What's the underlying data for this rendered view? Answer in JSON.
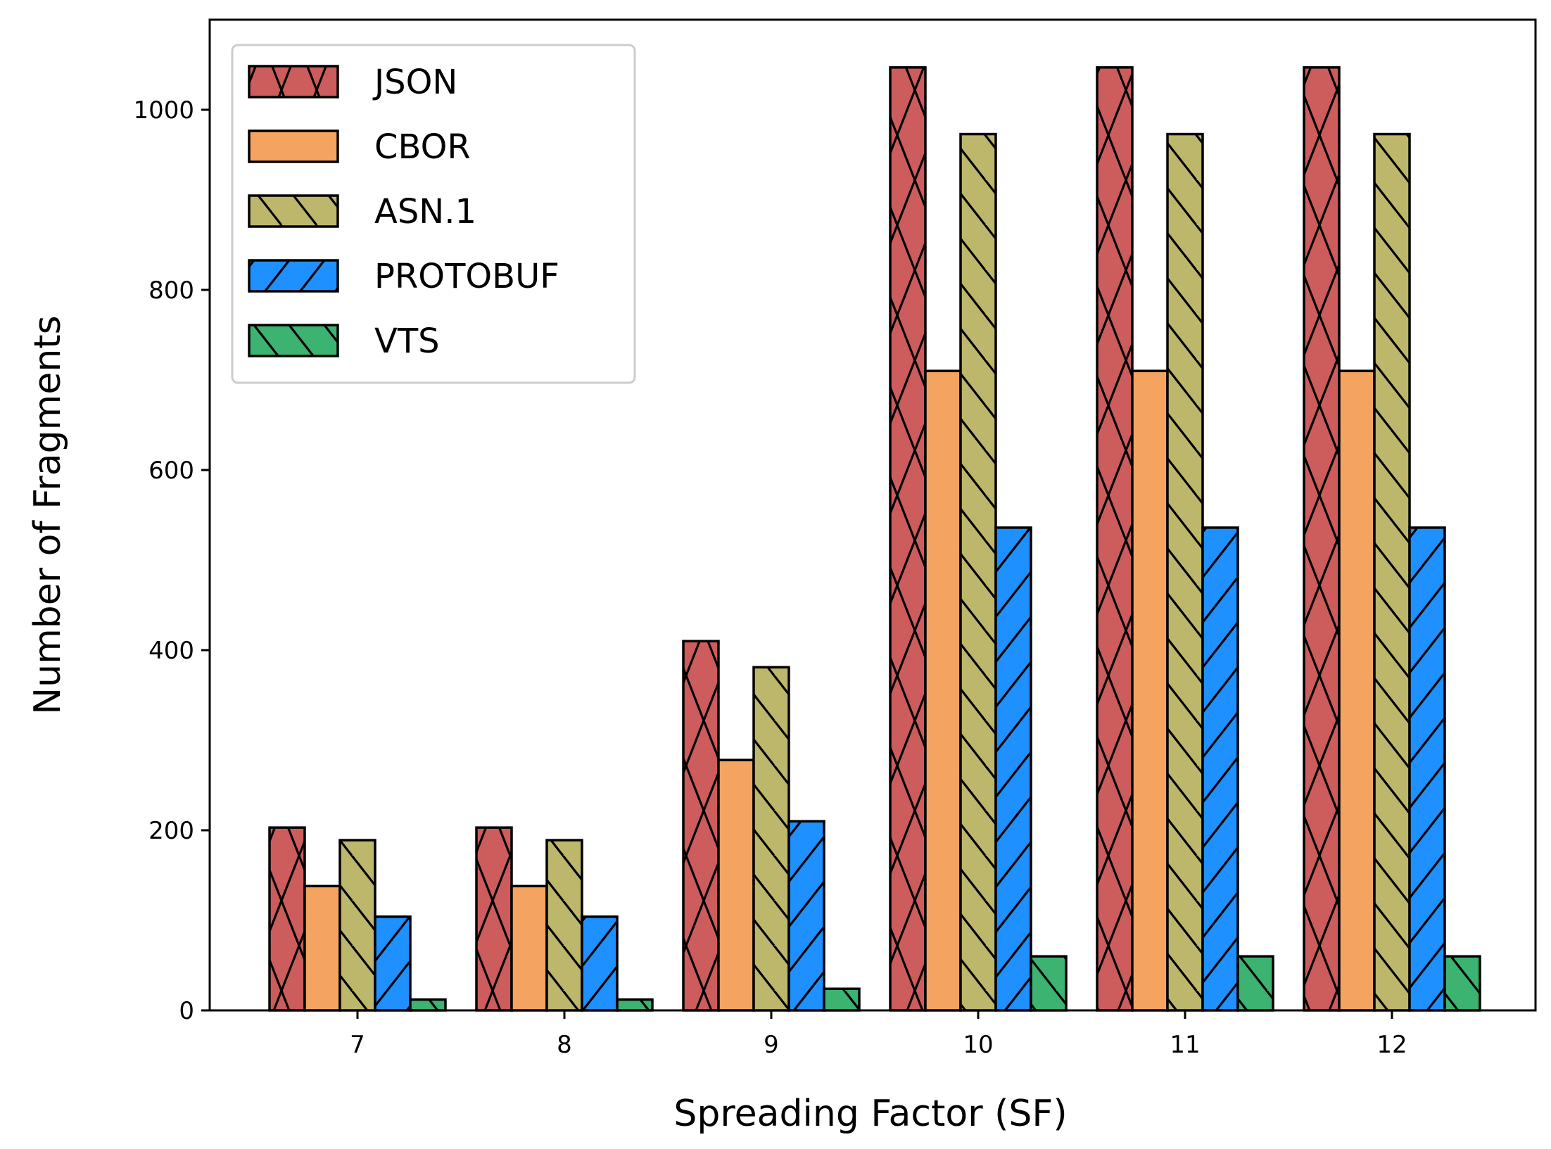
{
  "chart_data": {
    "type": "bar",
    "xlabel": "Spreading Factor (SF)",
    "ylabel": "Number of Fragments",
    "categories": [
      "7",
      "8",
      "9",
      "10",
      "11",
      "12"
    ],
    "yticks": [
      "0",
      "200",
      "400",
      "600",
      "800",
      "1000"
    ],
    "ylim": [
      0,
      1100
    ],
    "legend_position": "top-left",
    "grid": false,
    "series": [
      {
        "name": "JSON",
        "color": "#cd5c5c",
        "hatch": "cross",
        "values": [
          203,
          203,
          410,
          1047,
          1047,
          1047
        ]
      },
      {
        "name": "CBOR",
        "color": "#f4a460",
        "hatch": "none",
        "values": [
          138,
          138,
          278,
          710,
          710,
          710
        ]
      },
      {
        "name": "ASN.1",
        "color": "#bdb76b",
        "hatch": "backslash",
        "values": [
          189,
          189,
          381,
          973,
          973,
          973
        ]
      },
      {
        "name": "PROTOBUF",
        "color": "#1e90ff",
        "hatch": "slash",
        "values": [
          104,
          104,
          210,
          536,
          536,
          536
        ]
      },
      {
        "name": "VTS",
        "color": "#3cb371",
        "hatch": "backslash",
        "values": [
          12,
          12,
          24,
          60,
          60,
          60
        ]
      }
    ]
  }
}
